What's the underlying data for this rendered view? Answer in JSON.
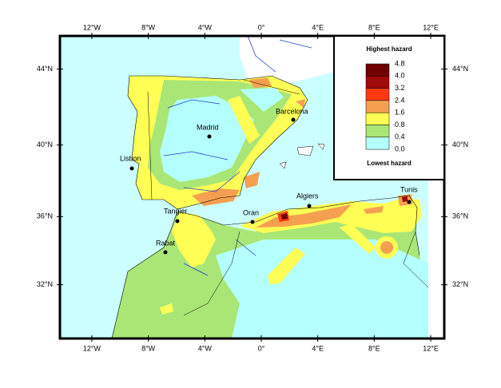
{
  "map": {
    "lon_ticks": [
      {
        "value": -12,
        "label": "12°W"
      },
      {
        "value": -8,
        "label": "8°W"
      },
      {
        "value": -4,
        "label": "4°W"
      },
      {
        "value": 0,
        "label": "0°"
      },
      {
        "value": 4,
        "label": "4°E"
      },
      {
        "value": 8,
        "label": "8°E"
      },
      {
        "value": 12,
        "label": "12°E"
      }
    ],
    "lat_ticks": [
      {
        "value": 44,
        "label": "44°N"
      },
      {
        "value": 40,
        "label": "40°N"
      },
      {
        "value": 36,
        "label": "36°N"
      },
      {
        "value": 32,
        "label": "32°N"
      }
    ],
    "cities": [
      "Madrid",
      "Barcelona",
      "Lisbon",
      "Tangier",
      "Rabat",
      "Oran",
      "Algiers",
      "Tunis"
    ],
    "legend": {
      "top_label": "Highest hazard",
      "bottom_label": "Lowest hazard",
      "levels": [
        4.8,
        {
          "value": 4,
          "label": "4.0"
        },
        3.2,
        2.4,
        1.6,
        0.8,
        0.4,
        {
          "value": 0,
          "label": "0.0"
        }
      ],
      "colors": [
        "#6e0000",
        "#a00a0a",
        "#ff3a10",
        "#f5a050",
        "#ffff55",
        "#aae676",
        "#b4ffff"
      ]
    }
  }
}
